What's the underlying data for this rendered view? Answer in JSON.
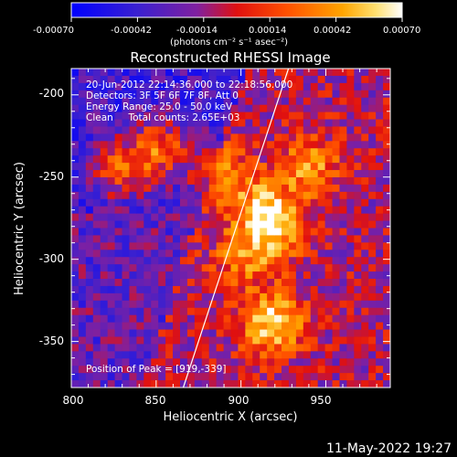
{
  "title": "Reconstructed RHESSI Image",
  "colorbar": {
    "ticks": [
      "-0.00070",
      "-0.00042",
      "-0.00014",
      "0.00014",
      "0.00042",
      "0.00070"
    ],
    "unit_label": "(photons cm⁻² s⁻¹ asec⁻²)",
    "range": [
      -0.0007,
      0.0007
    ],
    "colors": [
      "#0000ff",
      "#8030a0",
      "#ff2000",
      "#ffa000",
      "#ffffff"
    ]
  },
  "annotations": {
    "time": "20-Jun-2012 22:14:36.000 to 22:18:56.000",
    "detectors": "Detectors: 3F 5F 6F 7F 8F, Att 0",
    "energy": "Energy Range: 25.0 - 50.0 keV",
    "clean": "Clean     Total counts: 2.65E+03",
    "peak": "Position of Peak = [919,-339]"
  },
  "x_axis": {
    "label": "Heliocentric X (arcsec)",
    "ticks": [
      "800",
      "850",
      "900",
      "950"
    ],
    "range": [
      800,
      988
    ]
  },
  "y_axis": {
    "label": "Heliocentric Y (arcsec)",
    "ticks": [
      "-200",
      "-250",
      "-300",
      "-350"
    ],
    "range": [
      -378,
      -184
    ]
  },
  "footer": {
    "timestamp": "11-May-2022 19:27"
  },
  "chart_data": {
    "type": "heatmap",
    "title": "Reconstructed RHESSI Image",
    "xlabel": "Heliocentric X (arcsec)",
    "ylabel": "Heliocentric Y (arcsec)",
    "xlim": [
      800,
      988
    ],
    "ylim": [
      -378,
      -184
    ],
    "x_ticks": [
      800,
      850,
      900,
      950
    ],
    "y_ticks": [
      -200,
      -250,
      -300,
      -350
    ],
    "colorbar_range": [
      -0.0007,
      0.0007
    ],
    "colorbar_ticks": [
      -0.0007,
      -0.00042,
      -0.00014,
      0.00014,
      0.00042,
      0.0007
    ],
    "peak_position": [
      919,
      -339
    ],
    "limb_line": [
      [
        866,
        -378
      ],
      [
        928,
        -184
      ]
    ],
    "bright_sources": [
      {
        "x": 919,
        "y": -339,
        "value": 0.0007
      },
      {
        "x": 853,
        "y": -232,
        "value": 0.00055
      },
      {
        "x": 830,
        "y": -245,
        "value": 0.0005
      },
      {
        "x": 940,
        "y": -242,
        "value": 0.00045
      },
      {
        "x": 914,
        "y": -270,
        "value": 0.0005
      },
      {
        "x": 920,
        "y": -283,
        "value": 0.00045
      },
      {
        "x": 888,
        "y": -248,
        "value": 0.0004
      },
      {
        "x": 900,
        "y": -300,
        "value": 0.00035
      }
    ]
  }
}
